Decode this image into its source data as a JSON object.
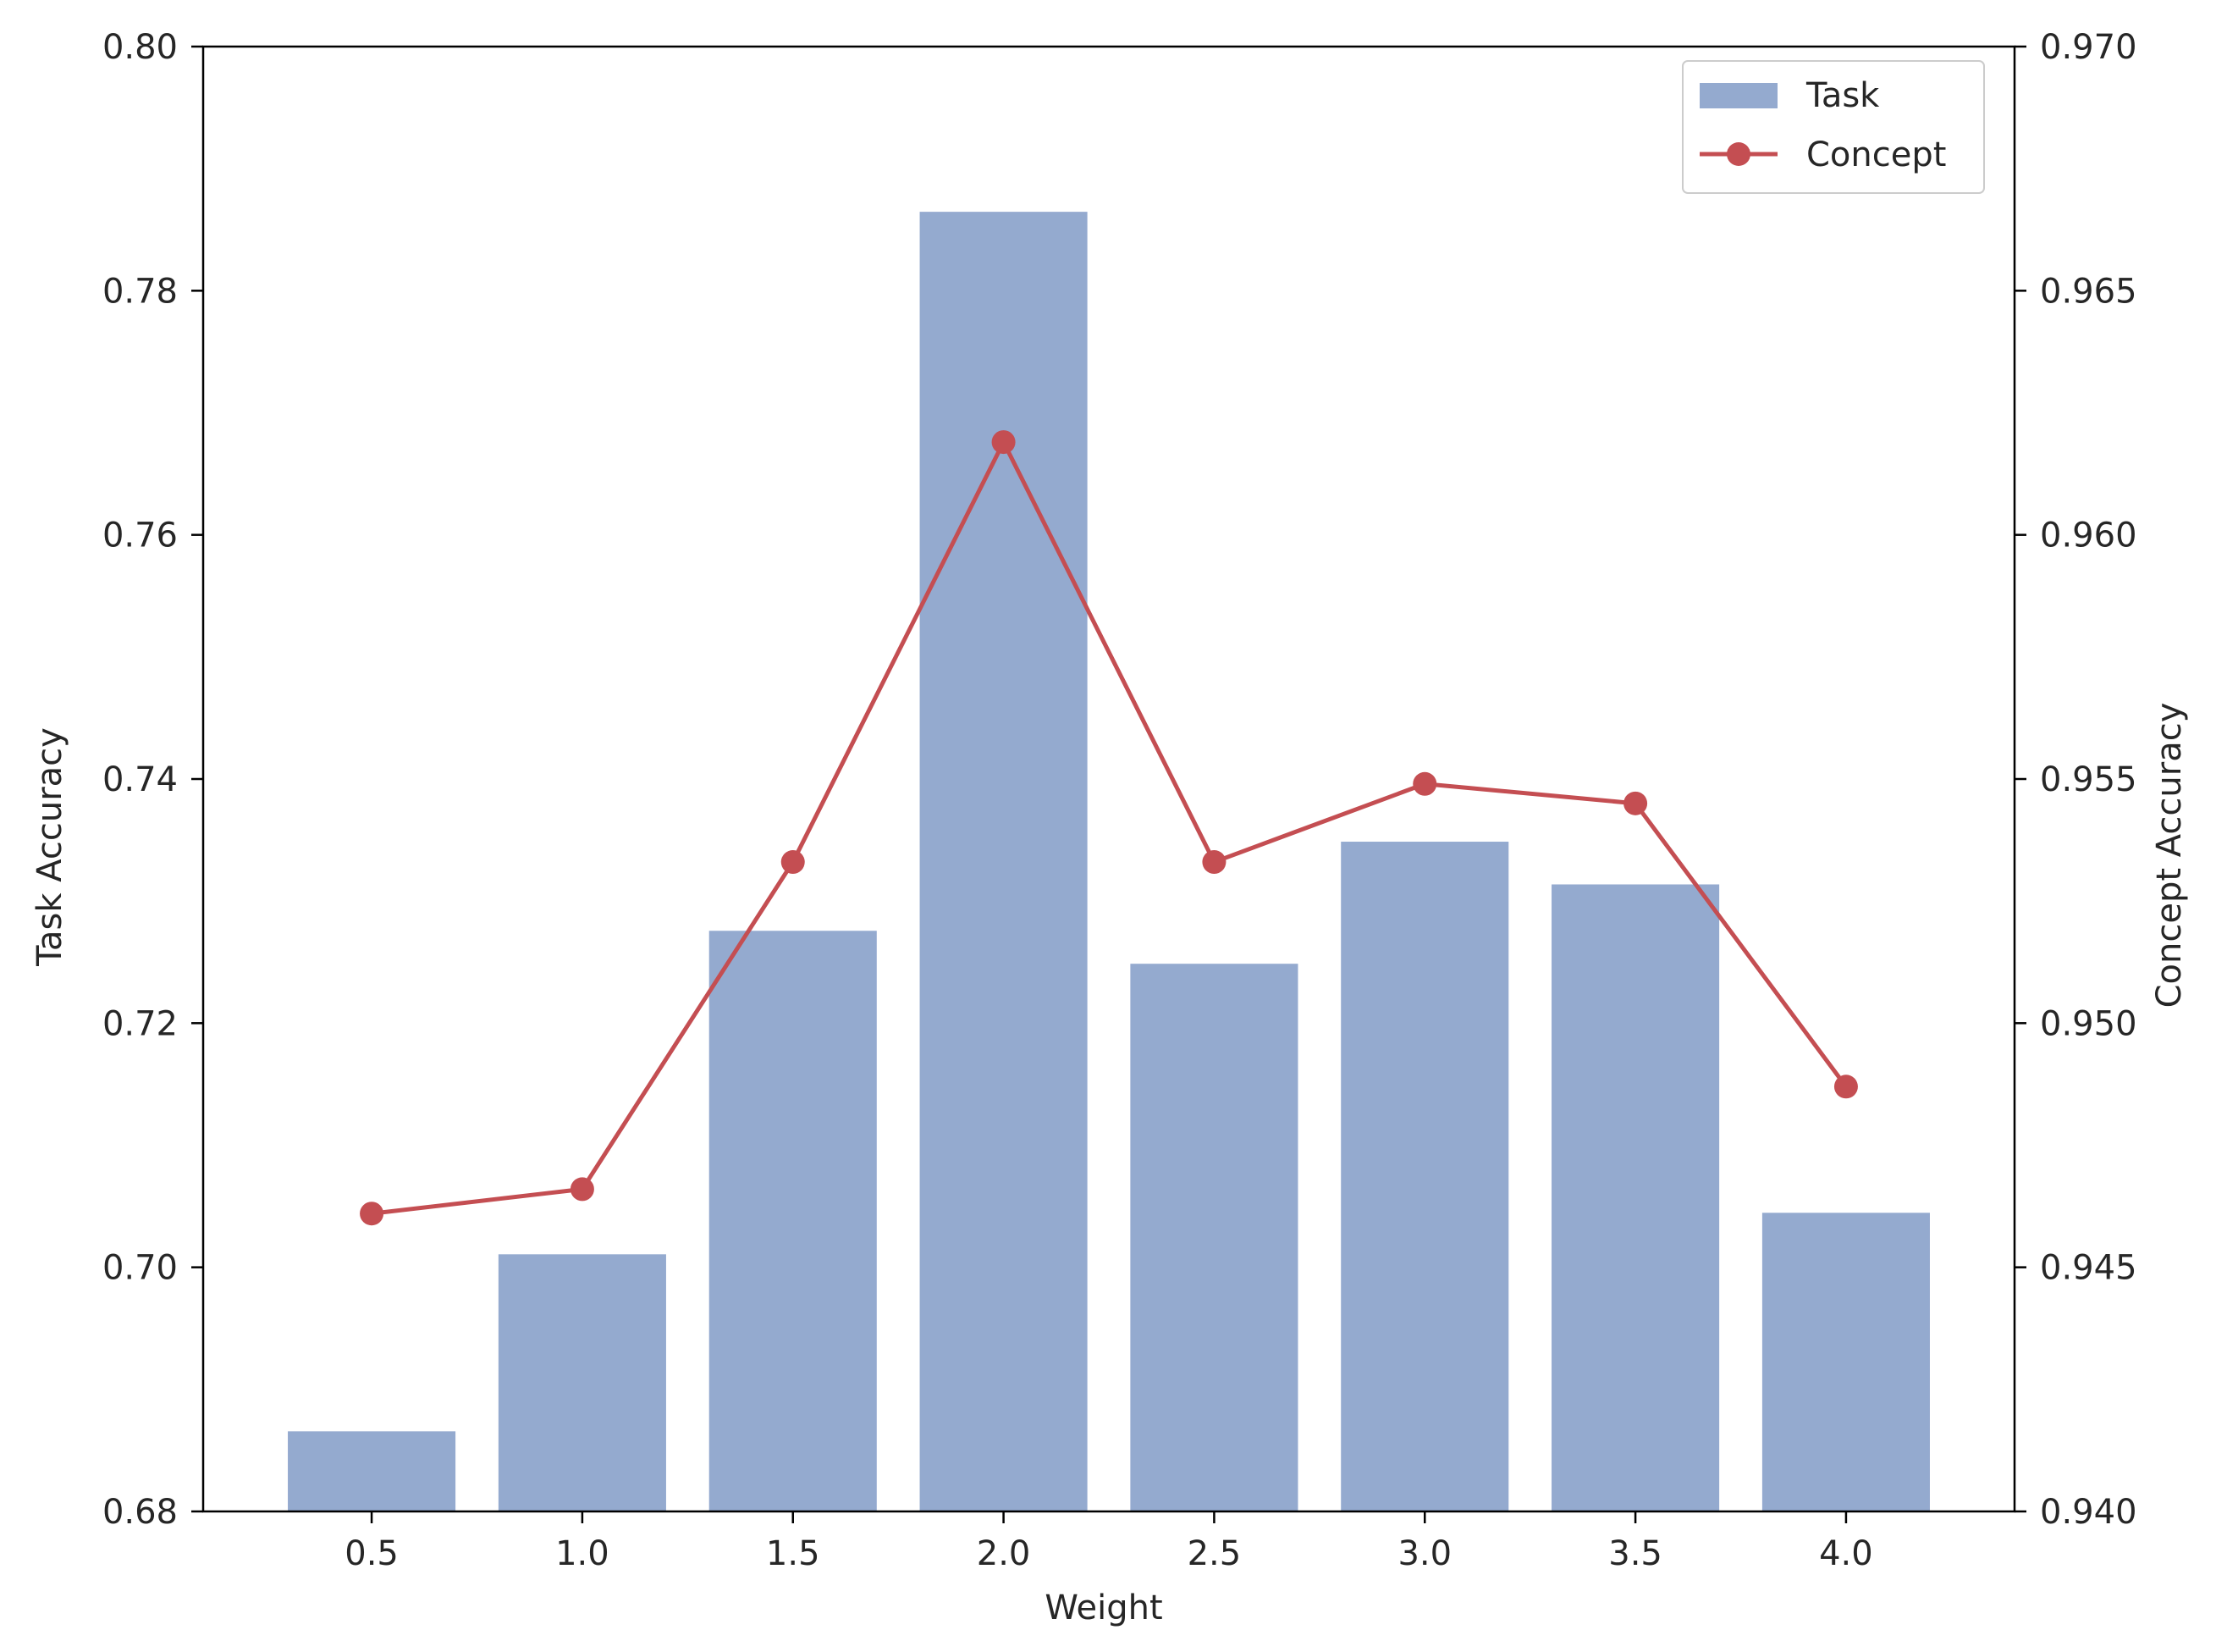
{
  "colors": {
    "bar": "#94aacf",
    "line": "#c44e52",
    "axis": "#000000",
    "text": "#262626",
    "legend_border": "#cccccc"
  },
  "chart_data": {
    "type": "bar+line",
    "title": "",
    "xlabel": "Weight",
    "ylabel_left": "Task Accuracy",
    "ylabel_right": "Concept Accuracy",
    "categories": [
      "0.5",
      "1.0",
      "1.5",
      "2.0",
      "2.5",
      "3.0",
      "3.5",
      "4.0"
    ],
    "ylim_left": [
      0.68,
      0.8
    ],
    "ylim_right": [
      0.94,
      0.97
    ],
    "yticks_left": [
      "0.68",
      "0.70",
      "0.72",
      "0.74",
      "0.76",
      "0.78",
      "0.80"
    ],
    "yticks_right": [
      "0.940",
      "0.945",
      "0.950",
      "0.955",
      "0.960",
      "0.965",
      "0.970"
    ],
    "series": [
      {
        "name": "Task",
        "type": "bar",
        "axis": "left",
        "values": [
          0.6866,
          0.7011,
          0.7276,
          0.7865,
          0.7249,
          0.7349,
          0.7314,
          0.7045
        ]
      },
      {
        "name": "Concept",
        "type": "line",
        "axis": "right",
        "values": [
          0.9461,
          0.9466,
          0.9533,
          0.9619,
          0.9533,
          0.9549,
          0.9545,
          0.9487
        ]
      }
    ],
    "legend": [
      "Task",
      "Concept"
    ],
    "legend_position": "top-right",
    "grid": false
  }
}
